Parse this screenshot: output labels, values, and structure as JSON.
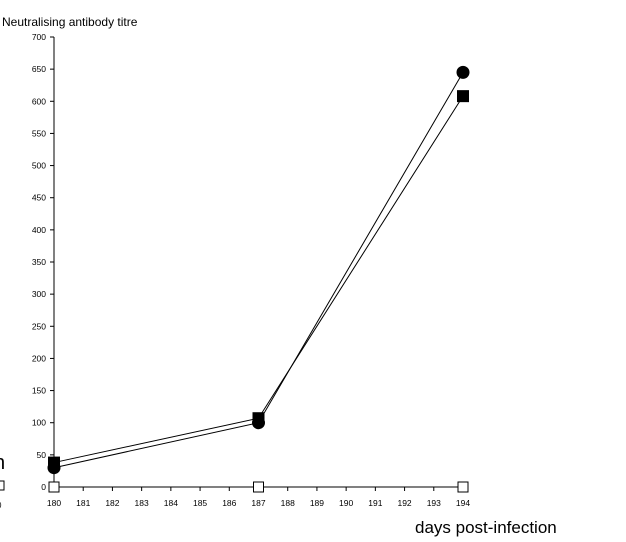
{
  "chart_data": {
    "type": "line",
    "title": "",
    "ylabel": "Neutralising antibody titre",
    "xlabel": "days post-infection",
    "xlim": [
      180,
      194
    ],
    "ylim": [
      0,
      700
    ],
    "x_ticks": [
      "180",
      "181",
      "182",
      "183",
      "184",
      "185",
      "186",
      "187",
      "188",
      "189",
      "190",
      "191",
      "192",
      "193",
      "194"
    ],
    "y_ticks": [
      "0",
      "50",
      "100",
      "150",
      "200",
      "250",
      "300",
      "350",
      "400",
      "450",
      "500",
      "550",
      "600",
      "650",
      "700"
    ],
    "grid": false,
    "series": [
      {
        "marker": "filled-circle",
        "color": "#000000",
        "points": [
          {
            "x": 180,
            "y": 30
          },
          {
            "x": 187,
            "y": 100
          },
          {
            "x": 194,
            "y": 645
          }
        ]
      },
      {
        "marker": "filled-square",
        "color": "#000000",
        "points": [
          {
            "x": 180,
            "y": 38
          },
          {
            "x": 187,
            "y": 107
          },
          {
            "x": 194,
            "y": 608
          }
        ]
      },
      {
        "marker": "open-square",
        "color": "#000000",
        "points": [
          {
            "x": 180,
            "y": 0
          },
          {
            "x": 187,
            "y": 0
          },
          {
            "x": 194,
            "y": 0
          }
        ]
      }
    ]
  }
}
